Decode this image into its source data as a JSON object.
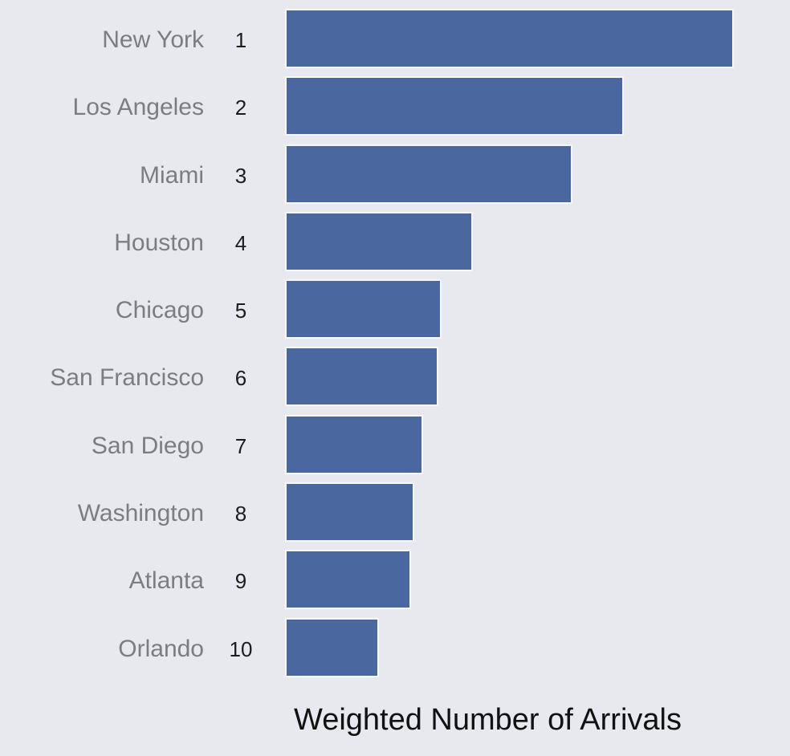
{
  "chart_data": {
    "type": "bar",
    "orientation": "horizontal",
    "title": "",
    "xlabel": "Weighted Number of Arrivals",
    "ylabel": "",
    "categories": [
      "New York",
      "Los Angeles",
      "Miami",
      "Houston",
      "Chicago",
      "San Francisco",
      "San Diego",
      "Washington",
      "Atlanta",
      "Orlando"
    ],
    "ranks": [
      "1",
      "2",
      "3",
      "4",
      "5",
      "6",
      "7",
      "8",
      "9",
      "10"
    ],
    "values": [
      100,
      75.3,
      63.8,
      41.4,
      34.4,
      33.7,
      30.3,
      28.3,
      27.6,
      20.4
    ],
    "value_note": "relative values, New York normalized to 100 (no numeric axis shown)",
    "xlim": [
      0,
      100
    ],
    "grid": false,
    "legend": null,
    "bar_color": "#4b67a0",
    "background_color": "#e7e9ee"
  },
  "rows": [
    {
      "city": "New York",
      "rank": "1",
      "value": 100
    },
    {
      "city": "Los Angeles",
      "rank": "2",
      "value": 75.3
    },
    {
      "city": "Miami",
      "rank": "3",
      "value": 63.8
    },
    {
      "city": "Houston",
      "rank": "4",
      "value": 41.4
    },
    {
      "city": "Chicago",
      "rank": "5",
      "value": 34.4
    },
    {
      "city": "San Francisco",
      "rank": "6",
      "value": 33.7
    },
    {
      "city": "San Diego",
      "rank": "7",
      "value": 30.3
    },
    {
      "city": "Washington",
      "rank": "8",
      "value": 28.3
    },
    {
      "city": "Atlanta",
      "rank": "9",
      "value": 27.6
    },
    {
      "city": "Orlando",
      "rank": "10",
      "value": 20.4
    }
  ],
  "axis": {
    "xlabel": "Weighted Number of Arrivals"
  }
}
